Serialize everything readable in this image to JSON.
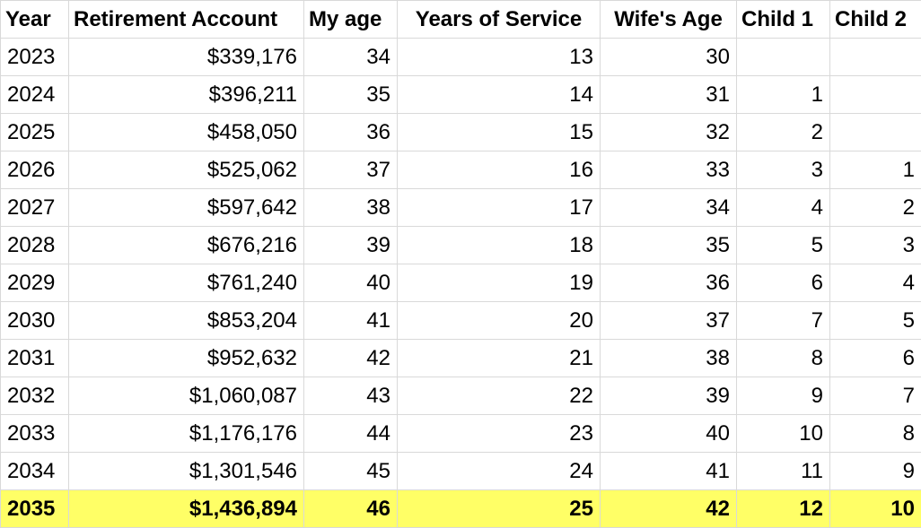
{
  "sheet": {
    "highlight_color": "#ffff66",
    "columns": [
      "Year",
      "Retirement Account",
      "My age",
      "Years of Service",
      "Wife's Age",
      "Child 1",
      "Child 2"
    ],
    "rows": [
      [
        "2023",
        "$339,176",
        "34",
        "13",
        "30",
        "",
        ""
      ],
      [
        "2024",
        "$396,211",
        "35",
        "14",
        "31",
        "1",
        ""
      ],
      [
        "2025",
        "$458,050",
        "36",
        "15",
        "32",
        "2",
        ""
      ],
      [
        "2026",
        "$525,062",
        "37",
        "16",
        "33",
        "3",
        "1"
      ],
      [
        "2027",
        "$597,642",
        "38",
        "17",
        "34",
        "4",
        "2"
      ],
      [
        "2028",
        "$676,216",
        "39",
        "18",
        "35",
        "5",
        "3"
      ],
      [
        "2029",
        "$761,240",
        "40",
        "19",
        "36",
        "6",
        "4"
      ],
      [
        "2030",
        "$853,204",
        "41",
        "20",
        "37",
        "7",
        "5"
      ],
      [
        "2031",
        "$952,632",
        "42",
        "21",
        "38",
        "8",
        "6"
      ],
      [
        "2032",
        "$1,060,087",
        "43",
        "22",
        "39",
        "9",
        "7"
      ],
      [
        "2033",
        "$1,176,176",
        "44",
        "23",
        "40",
        "10",
        "8"
      ],
      [
        "2034",
        "$1,301,546",
        "45",
        "24",
        "41",
        "11",
        "9"
      ]
    ],
    "highlighted_row": [
      "2035",
      "$1,436,894",
      "46",
      "25",
      "42",
      "12",
      "10"
    ]
  }
}
